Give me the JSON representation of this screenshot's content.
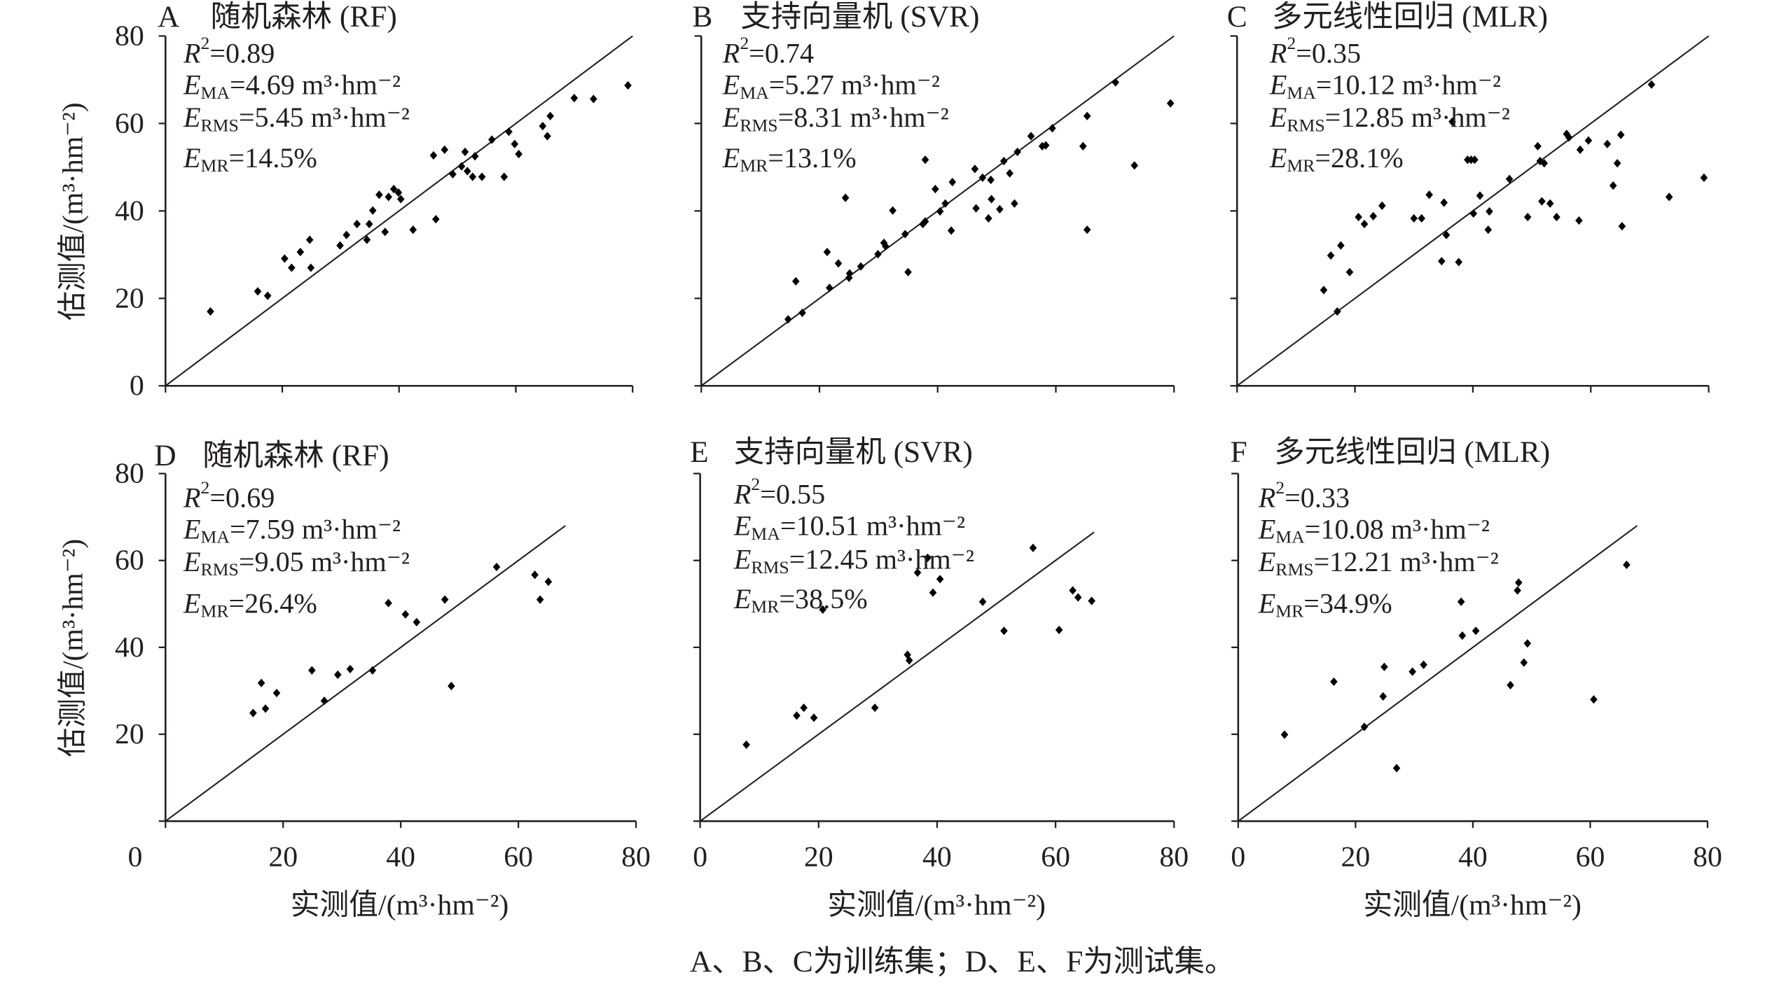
{
  "caption": "A、B、C为训练集；D、E、F为测试集。",
  "colors": {
    "marks": "#000000",
    "text": "#231f20",
    "background": "#ffffff"
  },
  "chart_data": [
    {
      "panel_label": "A",
      "type": "scatter",
      "title": "随机森林 (RF)",
      "xlabel": "",
      "ylabel": "估测值/(m³·hm⁻²)",
      "xlim": [
        0,
        80
      ],
      "ylim": [
        0,
        80
      ],
      "xticks": [
        0,
        20,
        40,
        60,
        80
      ],
      "yticks": [
        0,
        20,
        40,
        60,
        80
      ],
      "stats": [
        {
          "symbol": "R",
          "sup": "2",
          "rest": "=0.89"
        },
        {
          "symbol": "E",
          "sub": "MA",
          "rest": "=4.69 m³·hm⁻²"
        },
        {
          "symbol": "E",
          "sub": "RMS",
          "rest": "=5.45 m³·hm⁻²"
        },
        {
          "symbol": "E",
          "sub": "MR",
          "rest": "=14.5%"
        }
      ],
      "reference_line": [
        [
          0,
          0
        ],
        [
          80,
          80
        ]
      ],
      "points": [
        [
          7.7,
          17.0
        ],
        [
          15.8,
          21.6
        ],
        [
          17.5,
          20.6
        ],
        [
          20.4,
          29.1
        ],
        [
          21.6,
          27.0
        ],
        [
          23.1,
          30.6
        ],
        [
          24.7,
          33.4
        ],
        [
          24.9,
          27.0
        ],
        [
          29.9,
          32.1
        ],
        [
          31.0,
          34.5
        ],
        [
          32.8,
          37.0
        ],
        [
          34.5,
          33.4
        ],
        [
          34.9,
          37.0
        ],
        [
          35.5,
          40.1
        ],
        [
          36.6,
          43.7
        ],
        [
          37.6,
          35.2
        ],
        [
          38.2,
          43.2
        ],
        [
          39.1,
          45.0
        ],
        [
          39.9,
          44.2
        ],
        [
          40.3,
          42.7
        ],
        [
          42.4,
          35.7
        ],
        [
          45.9,
          52.7
        ],
        [
          46.3,
          38.1
        ],
        [
          47.8,
          54.0
        ],
        [
          49.2,
          48.4
        ],
        [
          50.7,
          50.2
        ],
        [
          51.3,
          53.5
        ],
        [
          51.7,
          49.1
        ],
        [
          52.6,
          47.8
        ],
        [
          53.0,
          52.5
        ],
        [
          54.2,
          47.8
        ],
        [
          55.9,
          56.3
        ],
        [
          58.0,
          47.8
        ],
        [
          58.8,
          58.1
        ],
        [
          59.8,
          55.3
        ],
        [
          60.5,
          53.0
        ],
        [
          64.6,
          59.4
        ],
        [
          65.4,
          57.1
        ],
        [
          65.9,
          61.7
        ],
        [
          70.0,
          65.8
        ],
        [
          73.3,
          65.6
        ],
        [
          79.2,
          68.7
        ]
      ]
    },
    {
      "panel_label": "B",
      "type": "scatter",
      "title": "支持向量机 (SVR)",
      "xlabel": "",
      "ylabel": "",
      "xlim": [
        0,
        80
      ],
      "ylim": [
        0,
        80
      ],
      "xticks": [
        0,
        20,
        40,
        60,
        80
      ],
      "yticks": [
        0,
        20,
        40,
        60,
        80
      ],
      "stats": [
        {
          "symbol": "R",
          "sup": "2",
          "rest": "=0.74"
        },
        {
          "symbol": "E",
          "sub": "MA",
          "rest": "=5.27 m³·hm⁻²"
        },
        {
          "symbol": "E",
          "sub": "RMS",
          "rest": "=8.31 m³·hm⁻²"
        },
        {
          "symbol": "E",
          "sub": "MR",
          "rest": "=13.1%"
        }
      ],
      "reference_line": [
        [
          0,
          0
        ],
        [
          80,
          80
        ]
      ],
      "points": [
        [
          14.7,
          15.2
        ],
        [
          16.0,
          23.9
        ],
        [
          17.1,
          16.7
        ],
        [
          21.3,
          30.6
        ],
        [
          21.7,
          22.4
        ],
        [
          23.2,
          28.0
        ],
        [
          24.4,
          43.0
        ],
        [
          25.0,
          24.7
        ],
        [
          25.1,
          25.7
        ],
        [
          27.0,
          27.3
        ],
        [
          29.9,
          30.1
        ],
        [
          30.9,
          32.7
        ],
        [
          31.2,
          31.9
        ],
        [
          32.4,
          40.1
        ],
        [
          34.5,
          34.7
        ],
        [
          35.0,
          26.0
        ],
        [
          37.5,
          37.0
        ],
        [
          37.9,
          37.6
        ],
        [
          37.9,
          51.7
        ],
        [
          39.6,
          45.0
        ],
        [
          40.4,
          39.9
        ],
        [
          41.3,
          41.7
        ],
        [
          42.3,
          35.5
        ],
        [
          42.5,
          46.6
        ],
        [
          46.3,
          49.6
        ],
        [
          46.5,
          40.6
        ],
        [
          47.6,
          47.6
        ],
        [
          48.6,
          38.3
        ],
        [
          49.0,
          47.1
        ],
        [
          49.1,
          42.7
        ],
        [
          50.5,
          40.4
        ],
        [
          51.2,
          51.4
        ],
        [
          52.2,
          48.6
        ],
        [
          53.0,
          41.7
        ],
        [
          53.5,
          53.5
        ],
        [
          55.8,
          57.1
        ],
        [
          57.7,
          54.8
        ],
        [
          58.3,
          55.0
        ],
        [
          59.4,
          58.9
        ],
        [
          64.6,
          54.8
        ],
        [
          65.3,
          61.7
        ],
        [
          65.3,
          35.7
        ],
        [
          70.1,
          69.4
        ],
        [
          73.3,
          50.4
        ],
        [
          79.4,
          64.6
        ]
      ]
    },
    {
      "panel_label": "C",
      "type": "scatter",
      "title": "多元线性回归 (MLR)",
      "xlabel": "",
      "ylabel": "",
      "xlim": [
        0,
        80
      ],
      "ylim": [
        0,
        80
      ],
      "xticks": [
        0,
        20,
        40,
        60,
        80
      ],
      "yticks": [
        0,
        20,
        40,
        60,
        80
      ],
      "stats": [
        {
          "symbol": "R",
          "sup": "2",
          "rest": "=0.35"
        },
        {
          "symbol": "E",
          "sub": "MA",
          "rest": "=10.12 m³·hm⁻²"
        },
        {
          "symbol": "E",
          "sub": "RMS",
          "rest": "=12.85 m³·hm⁻²"
        },
        {
          "symbol": "E",
          "sub": "MR",
          "rest": "=28.1%"
        }
      ],
      "reference_line": [
        [
          0,
          0
        ],
        [
          80,
          80
        ]
      ],
      "points": [
        [
          14.7,
          21.9
        ],
        [
          15.9,
          29.8
        ],
        [
          17.0,
          17.0
        ],
        [
          17.6,
          32.1
        ],
        [
          19.1,
          26.0
        ],
        [
          20.6,
          38.6
        ],
        [
          21.6,
          37.0
        ],
        [
          23.1,
          38.8
        ],
        [
          24.6,
          41.2
        ],
        [
          30.0,
          38.3
        ],
        [
          31.3,
          38.3
        ],
        [
          32.6,
          43.7
        ],
        [
          34.7,
          28.5
        ],
        [
          35.1,
          41.9
        ],
        [
          35.5,
          34.5
        ],
        [
          36.5,
          60.4
        ],
        [
          37.6,
          28.3
        ],
        [
          39.1,
          51.7
        ],
        [
          39.7,
          51.7
        ],
        [
          40.3,
          51.7
        ],
        [
          40.1,
          39.4
        ],
        [
          41.2,
          43.5
        ],
        [
          42.6,
          35.7
        ],
        [
          42.8,
          39.9
        ],
        [
          46.2,
          47.3
        ],
        [
          49.3,
          38.6
        ],
        [
          51.0,
          54.8
        ],
        [
          51.4,
          51.4
        ],
        [
          51.7,
          42.2
        ],
        [
          52.1,
          50.9
        ],
        [
          53.1,
          41.7
        ],
        [
          54.2,
          38.6
        ],
        [
          55.9,
          57.6
        ],
        [
          56.3,
          56.8
        ],
        [
          58.0,
          37.8
        ],
        [
          58.2,
          54.0
        ],
        [
          59.6,
          56.1
        ],
        [
          62.8,
          55.3
        ],
        [
          63.8,
          45.8
        ],
        [
          64.5,
          50.9
        ],
        [
          65.1,
          57.4
        ],
        [
          65.3,
          36.5
        ],
        [
          70.3,
          68.9
        ],
        [
          73.3,
          43.2
        ],
        [
          79.2,
          47.6
        ]
      ]
    },
    {
      "panel_label": "D",
      "type": "scatter",
      "title": "随机森林 (RF)",
      "xlabel": "实测值/(m³·hm⁻²)",
      "ylabel": "估测值/(m³·hm⁻²)",
      "xlim": [
        0,
        80
      ],
      "ylim": [
        0,
        80
      ],
      "xticks": [
        0,
        20,
        40,
        60,
        80
      ],
      "yticks": [
        0,
        20,
        40,
        60,
        80
      ],
      "stats": [
        {
          "symbol": "R",
          "sup": "2",
          "rest": "=0.69"
        },
        {
          "symbol": "E",
          "sub": "MA",
          "rest": "=7.59 m³·hm⁻²"
        },
        {
          "symbol": "E",
          "sub": "RMS",
          "rest": "=9.05 m³·hm⁻²"
        },
        {
          "symbol": "E",
          "sub": "MR",
          "rest": "=26.4%"
        }
      ],
      "reference_line": [
        [
          0,
          0
        ],
        [
          68,
          68
        ]
      ],
      "points": [
        [
          14.9,
          24.9
        ],
        [
          16.3,
          31.8
        ],
        [
          17.0,
          25.9
        ],
        [
          18.9,
          29.5
        ],
        [
          24.9,
          34.7
        ],
        [
          27.0,
          27.7
        ],
        [
          29.3,
          33.7
        ],
        [
          31.4,
          35.0
        ],
        [
          35.2,
          34.7
        ],
        [
          37.9,
          50.2
        ],
        [
          40.8,
          47.6
        ],
        [
          42.7,
          45.8
        ],
        [
          47.5,
          51.0
        ],
        [
          48.6,
          31.1
        ],
        [
          56.3,
          58.5
        ],
        [
          62.8,
          56.7
        ],
        [
          63.7,
          51.0
        ],
        [
          65.1,
          55.1
        ]
      ]
    },
    {
      "panel_label": "E",
      "type": "scatter",
      "title": "支持向量机 (SVR)",
      "xlabel": "实测值/(m³·hm⁻²)",
      "ylabel": "",
      "xlim": [
        0,
        80
      ],
      "ylim": [
        0,
        80
      ],
      "xticks": [
        0,
        20,
        40,
        60,
        80
      ],
      "yticks": [
        0,
        20,
        40,
        60,
        80
      ],
      "stats": [
        {
          "symbol": "R",
          "sup": "2",
          "rest": "=0.55"
        },
        {
          "symbol": "E",
          "sub": "MA",
          "rest": "=10.51 m³·hm⁻²"
        },
        {
          "symbol": "E",
          "sub": "RMS",
          "rest": "=12.45 m³·hm⁻²"
        },
        {
          "symbol": "E",
          "sub": "MR",
          "rest": "=38.5%"
        }
      ],
      "reference_line": [
        [
          0,
          0
        ],
        [
          66.5,
          66.5
        ]
      ],
      "points": [
        [
          7.8,
          17.6
        ],
        [
          16.3,
          24.3
        ],
        [
          17.5,
          26.1
        ],
        [
          19.2,
          23.8
        ],
        [
          20.7,
          48.7
        ],
        [
          29.5,
          26.1
        ],
        [
          35.0,
          38.3
        ],
        [
          35.3,
          37.0
        ],
        [
          36.7,
          57.2
        ],
        [
          38.4,
          60.6
        ],
        [
          39.3,
          52.6
        ],
        [
          40.5,
          55.7
        ],
        [
          47.7,
          50.5
        ],
        [
          51.3,
          43.8
        ],
        [
          56.2,
          62.9
        ],
        [
          60.6,
          44.0
        ],
        [
          62.9,
          53.1
        ],
        [
          63.8,
          51.5
        ],
        [
          66.1,
          50.7
        ]
      ]
    },
    {
      "panel_label": "F",
      "type": "scatter",
      "title": "多元线性回归 (MLR)",
      "xlabel": "实测值/(m³·hm⁻²)",
      "ylabel": "",
      "xlim": [
        0,
        80
      ],
      "ylim": [
        0,
        80
      ],
      "xticks": [
        0,
        20,
        40,
        60,
        80
      ],
      "yticks": [
        0,
        20,
        40,
        60,
        80
      ],
      "stats": [
        {
          "symbol": "R",
          "sup": "2",
          "rest": "=0.33"
        },
        {
          "symbol": "E",
          "sub": "MA",
          "rest": "=10.08 m³·hm⁻²"
        },
        {
          "symbol": "E",
          "sub": "RMS",
          "rest": "=12.21 m³·hm⁻²"
        },
        {
          "symbol": "E",
          "sub": "MR",
          "rest": "=34.9%"
        }
      ],
      "reference_line": [
        [
          0,
          0
        ],
        [
          68,
          68
        ]
      ],
      "points": [
        [
          7.9,
          19.9
        ],
        [
          16.3,
          32.1
        ],
        [
          21.5,
          21.7
        ],
        [
          24.7,
          28.7
        ],
        [
          24.9,
          35.5
        ],
        [
          27.0,
          12.2
        ],
        [
          29.7,
          34.4
        ],
        [
          31.6,
          36.0
        ],
        [
          38.0,
          50.5
        ],
        [
          38.2,
          42.7
        ],
        [
          40.5,
          43.8
        ],
        [
          46.4,
          31.3
        ],
        [
          47.6,
          53.1
        ],
        [
          47.8,
          54.9
        ],
        [
          48.7,
          36.5
        ],
        [
          49.3,
          40.9
        ],
        [
          60.6,
          28.0
        ],
        [
          66.2,
          59.0
        ]
      ]
    }
  ]
}
